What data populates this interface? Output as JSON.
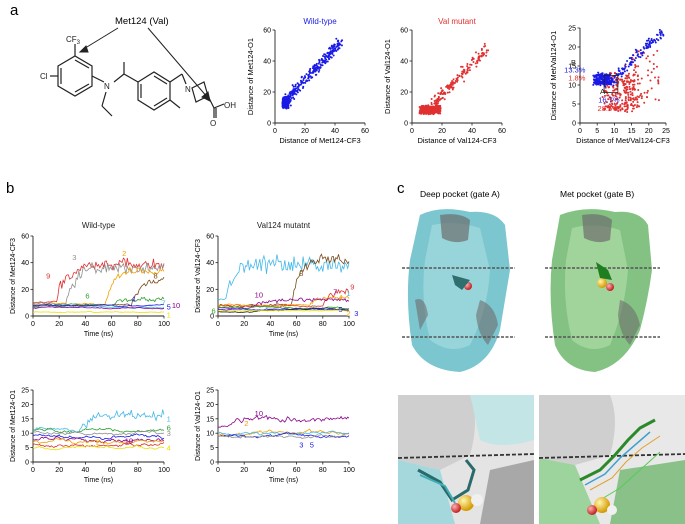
{
  "panel_letters": {
    "a": "a",
    "b": "b",
    "c": "c"
  },
  "chemistry": {
    "residue_label": "Met124 (Val)",
    "cf3": "CF",
    "cf3_sub": "3",
    "cl": "Cl",
    "n_amine": "N",
    "n_ring": "N",
    "oh": "OH",
    "o": "O"
  },
  "colors": {
    "wildtype": "#1a1ae6",
    "mutant": "#e03030",
    "purple": "#8b008b",
    "orange": "#f0a000",
    "green": "#2e9e2e",
    "brown": "#7a4a1a",
    "cyan": "#45b8e8",
    "yellow": "#e8e000",
    "gray": "#909090"
  },
  "chart_data": [
    {
      "id": "scatter-wt",
      "type": "scatter",
      "title": "Wild-type",
      "xlabel": "Distance of Met124-CF3",
      "ylabel": "Distance of Met124-O1",
      "xlim": [
        0,
        60
      ],
      "ylim": [
        0,
        60
      ],
      "xticks": [
        "0",
        "20",
        "40",
        "60"
      ],
      "yticks": [
        "0",
        "20",
        "40",
        "60"
      ],
      "series": [
        {
          "name": "wild-type",
          "color": "#1a1ae6",
          "description_shape": "dense cluster near (8,15) rising diagonally to (45,55)"
        }
      ]
    },
    {
      "id": "scatter-val",
      "type": "scatter",
      "title": "Val mutant",
      "xlabel": "Distance of Val124-CF3",
      "ylabel": "Distance of Val124-O1",
      "xlim": [
        0,
        60
      ],
      "ylim": [
        0,
        60
      ],
      "xticks": [
        "0",
        "20",
        "40",
        "60"
      ],
      "yticks": [
        "0",
        "20",
        "40",
        "60"
      ],
      "series": [
        {
          "name": "val mutant",
          "color": "#e03030"
        }
      ]
    },
    {
      "id": "scatter-overlay",
      "type": "scatter",
      "title": "",
      "xlabel": "Distance of Met/Val124-CF3",
      "ylabel": "Distance of Met/Val124-O1",
      "xlim": [
        0,
        25
      ],
      "ylim": [
        0,
        25
      ],
      "xticks": [
        "0",
        "5",
        "10",
        "15",
        "20",
        "25"
      ],
      "yticks": [
        "0",
        "5",
        "10",
        "15",
        "20",
        "25"
      ],
      "annotations": {
        "B": "B",
        "B_wt": "13.3%",
        "B_val": "1.8%",
        "A": "A",
        "A_wt": "16.7%",
        "A_val": "28.5%"
      }
    },
    {
      "id": "ts-wt-top",
      "type": "line",
      "title": "Wild-type",
      "xlabel": "Time (ns)",
      "ylabel": "Distance of Met124-CF3",
      "xlim": [
        0,
        100
      ],
      "ylim": [
        0,
        60
      ],
      "xticks": [
        "0",
        "20",
        "40",
        "60",
        "80",
        "100"
      ],
      "yticks": [
        "0",
        "20",
        "40",
        "60"
      ],
      "line_labels": [
        "9",
        "3",
        "2",
        "8",
        "6",
        "7",
        "4",
        "5",
        "10",
        "1"
      ]
    },
    {
      "id": "ts-val-top",
      "type": "line",
      "title": "Val124 mutatnt",
      "xlabel": "Time (ns)",
      "ylabel": "Distance of Val124-CF3",
      "xlim": [
        0,
        100
      ],
      "ylim": [
        0,
        60
      ],
      "xticks": [
        "0",
        "20",
        "40",
        "60",
        "80",
        "100"
      ],
      "yticks": [
        "0",
        "20",
        "40",
        "60"
      ],
      "line_labels": [
        "8",
        "9",
        "1",
        "7",
        "10",
        "4",
        "6",
        "5",
        "2",
        "3"
      ]
    },
    {
      "id": "ts-wt-bot",
      "type": "line",
      "title": "",
      "xlabel": "Time (ns)",
      "ylabel": "Distance of Met124-O1",
      "xlim": [
        0,
        100
      ],
      "ylim": [
        0,
        25
      ],
      "xticks": [
        "0",
        "20",
        "40",
        "60",
        "80",
        "100"
      ],
      "yticks": [
        "0",
        "5",
        "10",
        "15",
        "20",
        "25"
      ],
      "line_labels": [
        "1",
        "6",
        "3",
        "2",
        "10",
        "4"
      ]
    },
    {
      "id": "ts-val-bot",
      "type": "line",
      "title": "",
      "xlabel": "Time (ns)",
      "ylabel": "Distance of Val124-O1",
      "xlim": [
        0,
        100
      ],
      "ylim": [
        0,
        25
      ],
      "xticks": [
        "0",
        "20",
        "40",
        "60",
        "80",
        "100"
      ],
      "yticks": [
        "0",
        "5",
        "10",
        "15",
        "20",
        "25"
      ],
      "line_labels": [
        "10",
        "2",
        "3",
        "5"
      ]
    }
  ],
  "structures": {
    "deep_title": "Deep pocket (gate A)",
    "met_title": "Met pocket (gate B)"
  }
}
